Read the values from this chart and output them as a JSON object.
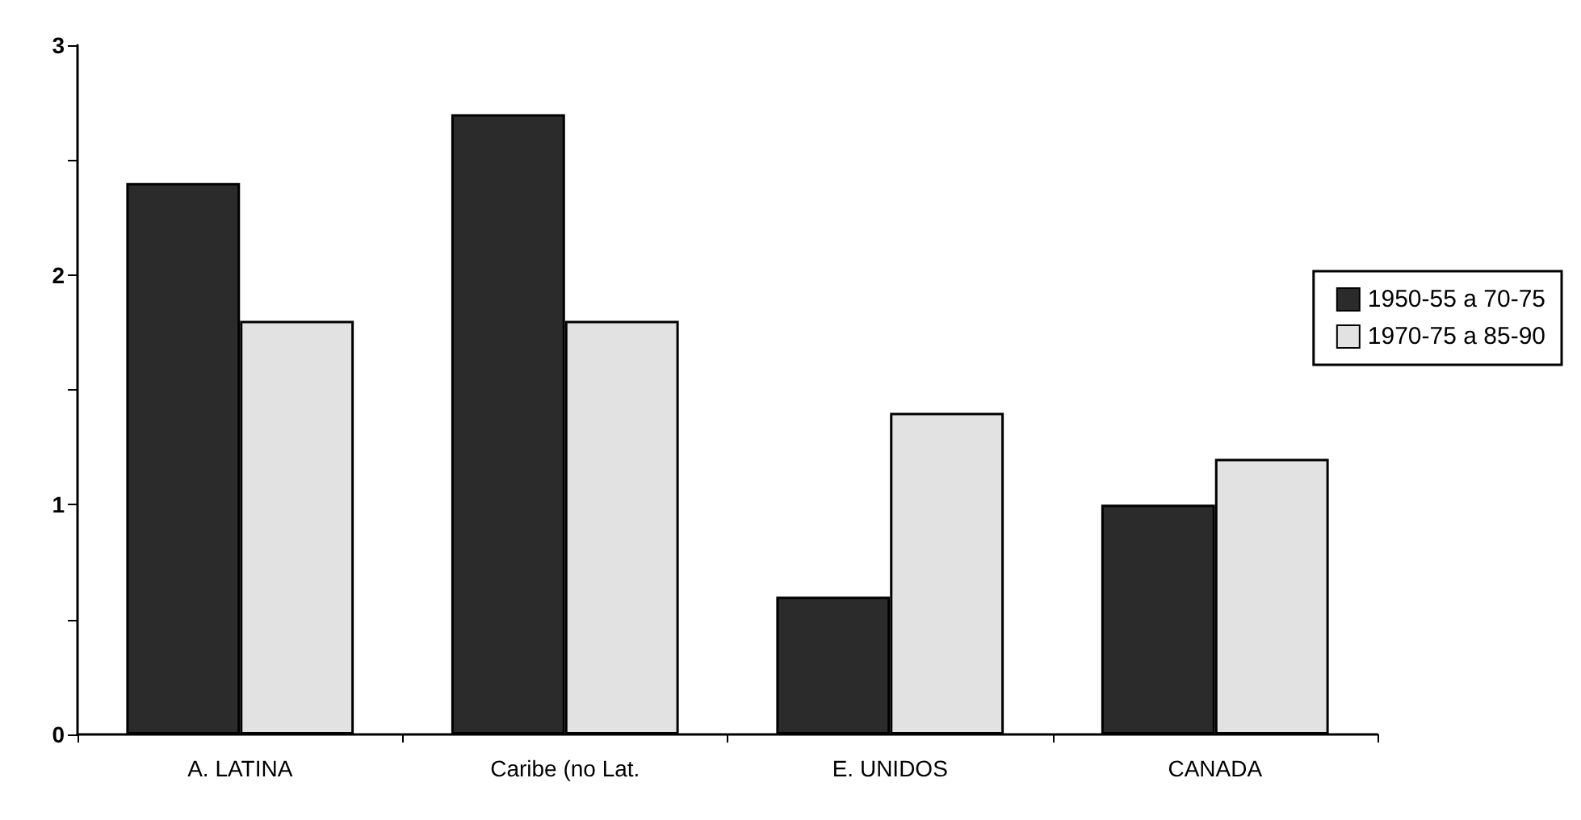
{
  "chart_data": {
    "type": "bar",
    "categories": [
      "A. LATINA",
      "Caribe (no Lat.",
      "E. UNIDOS",
      "CANADA"
    ],
    "series": [
      {
        "name": "1950-55 a 70-75",
        "color": "#2b2b2b",
        "values": [
          2.4,
          2.7,
          0.6,
          1.0
        ]
      },
      {
        "name": "1970-75 a 85-90",
        "color": "#e2e2e2",
        "values": [
          1.8,
          1.8,
          1.4,
          1.2
        ]
      }
    ],
    "ylim": [
      0,
      3
    ],
    "yticks": [
      0,
      {
        "value": 0.5,
        "label": null
      },
      1,
      {
        "value": 1.5,
        "label": null
      },
      2,
      {
        "value": 2.5,
        "label": null
      },
      3
    ],
    "grid": false,
    "legend": "right"
  }
}
